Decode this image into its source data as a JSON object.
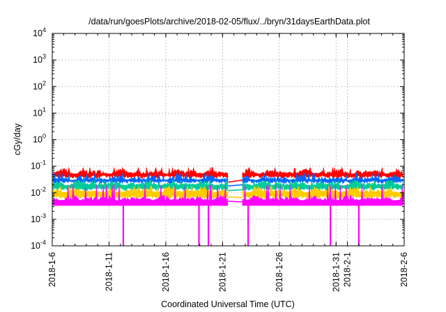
{
  "chart_data": {
    "type": "line",
    "title": "/data/run/goesPlots/archive/2018-02-05/flux/../bryn/31daysEarthData.plot",
    "xlabel": "Coordinated Universal Time (UTC)",
    "ylabel": "cGy/day",
    "y_scale": "log",
    "ylim": [
      0.0001,
      10000
    ],
    "y_ticks": [
      {
        "value": 0.0001,
        "base": "10",
        "exp": "-4"
      },
      {
        "value": 0.001,
        "base": "10",
        "exp": "-3"
      },
      {
        "value": 0.01,
        "base": "10",
        "exp": "-2"
      },
      {
        "value": 0.1,
        "base": "10",
        "exp": "-1"
      },
      {
        "value": 1,
        "base": "10",
        "exp": "0"
      },
      {
        "value": 10,
        "base": "10",
        "exp": "1"
      },
      {
        "value": 100,
        "base": "10",
        "exp": "2"
      },
      {
        "value": 1000,
        "base": "10",
        "exp": "3"
      },
      {
        "value": 10000,
        "base": "10",
        "exp": "4"
      }
    ],
    "xlim": [
      "2018-01-06",
      "2018-02-06"
    ],
    "x_ticks": [
      {
        "date": "2018-01-06",
        "label": "2018-1-6"
      },
      {
        "date": "2018-01-11",
        "label": "2018-1-11"
      },
      {
        "date": "2018-01-16",
        "label": "2018-1-16"
      },
      {
        "date": "2018-01-21",
        "label": "2018-1-21"
      },
      {
        "date": "2018-01-26",
        "label": "2018-1-26"
      },
      {
        "date": "2018-01-31",
        "label": "2018-1-31"
      },
      {
        "date": "2018-02-01",
        "label": "2018-2-1"
      },
      {
        "date": "2018-02-06",
        "label": "2018-2-6"
      }
    ],
    "grid": true,
    "series": [
      {
        "color": "#ff0000",
        "typical": 0.06,
        "peak": 0.09
      },
      {
        "color": "#0066ff",
        "typical": 0.035,
        "peak": 0.055
      },
      {
        "color": "#00cc99",
        "typical": 0.022,
        "peak": 0.03
      },
      {
        "color": "#ffcc00",
        "typical": 0.012,
        "peak": 0.018
      },
      {
        "color": "#ff00ff",
        "typical": 0.006,
        "peak": 0.02
      }
    ],
    "data_gap": [
      "2018-01-21T12:00",
      "2018-01-22T18:00"
    ],
    "gap_connectors": [
      {
        "color": "#ff0000",
        "start": 0.025,
        "end": 0.03
      },
      {
        "color": "#0066ff",
        "start": 0.018,
        "end": 0.02
      },
      {
        "color": "#00cc99",
        "start": 0.012,
        "end": 0.013
      },
      {
        "color": "#ffcc00",
        "start": 0.007,
        "end": 0.0065
      },
      {
        "color": "#ff00ff",
        "start": 0.0048,
        "end": 0.0045
      }
    ],
    "dropouts": [
      "2018-01-12T06:00",
      "2018-01-18T22:00",
      "2018-01-19T18:00",
      "2018-01-23T06:00",
      "2018-01-30T12:00",
      "2018-02-02T00:00"
    ]
  }
}
